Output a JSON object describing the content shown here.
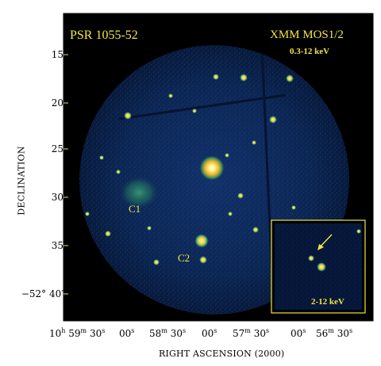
{
  "image": {
    "title": "PSR 1055-52",
    "instrument": "XMM MOS1/2",
    "band_main": "0.3-12 keV",
    "band_inset": "2-12 keV",
    "source_labels": [
      "C1",
      "C2"
    ]
  },
  "axes": {
    "ylabel": "DECLINATION",
    "xlabel": "RIGHT ASCENSION (2000)",
    "yticks": [
      "15",
      "20",
      "25",
      "30",
      "35",
      "−52° 40′"
    ],
    "xticks": [
      {
        "main": "10",
        "unit": "h",
        "main2": "59",
        "unit2": "m",
        "rest": "30",
        "unit3": "s"
      },
      {
        "main": "00",
        "unit": "s"
      },
      {
        "main": "58",
        "unit": "m",
        "rest": "30",
        "unit3": "s"
      },
      {
        "main": "00",
        "unit": "s"
      },
      {
        "main": "57",
        "unit": "m",
        "rest": "30",
        "unit3": "s"
      },
      {
        "main": "00",
        "unit": "s"
      },
      {
        "main": "56",
        "unit": "m",
        "rest": "30",
        "unit3": "s"
      }
    ]
  },
  "colors": {
    "background": "#000000",
    "frame": "#f2e640",
    "field": "#0a1f4a",
    "source": "#f0e850"
  }
}
